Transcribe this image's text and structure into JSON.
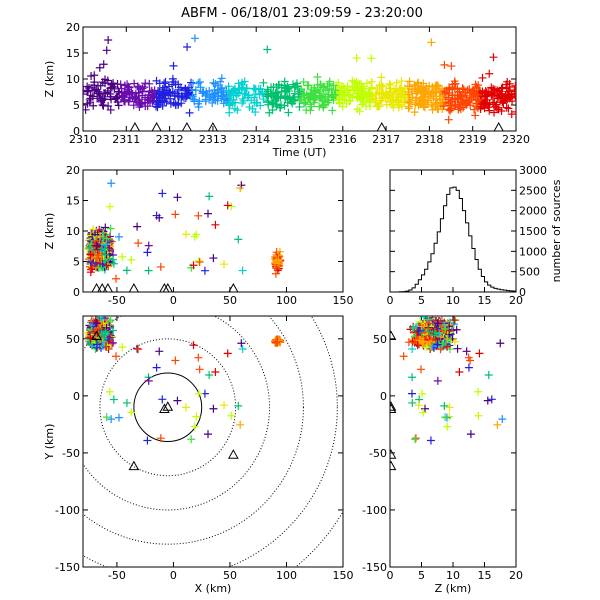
{
  "title": "ABFM - 06/18/01 23:09:59 - 23:20:00",
  "chart_data": [
    {
      "id": "time-height",
      "type": "scatter",
      "xlabel": "Time (UT)",
      "ylabel": "Z (km)",
      "xlim": [
        2310,
        2320
      ],
      "ylim": [
        0,
        20
      ],
      "xticks": [
        "2310",
        "2311",
        "2312",
        "2313",
        "2314",
        "2315",
        "2316",
        "2317",
        "2318",
        "2319",
        "2320"
      ],
      "yticks": [
        "0",
        "5",
        "10",
        "15",
        "20"
      ],
      "stations_x": [
        2311.2,
        2311.7,
        2312.4,
        2313.0,
        2316.9,
        2319.6
      ]
    },
    {
      "id": "x-z",
      "type": "scatter",
      "xlabel": "",
      "ylabel": "Z (km)",
      "xlim": [
        -80,
        150
      ],
      "ylim": [
        0,
        20
      ],
      "xticks": [
        "-50",
        "0",
        "50",
        "100",
        "150"
      ],
      "yticks": [
        "0",
        "5",
        "10",
        "15",
        "20"
      ],
      "stations_x": [
        -68,
        -63,
        -58,
        -35,
        -8,
        -5,
        53
      ]
    },
    {
      "id": "histogram",
      "type": "bar",
      "xlabel": "",
      "ylabel": "number of sources",
      "xlim": [
        0,
        20
      ],
      "ylim": [
        0,
        3000
      ],
      "xticks": [
        "0",
        "5",
        "10",
        "15",
        "20"
      ],
      "yticks": [
        "0",
        "500",
        "1000",
        "1500",
        "2000",
        "2500",
        "3000"
      ],
      "bin_width": 0.5,
      "values": [
        0,
        0,
        0,
        5,
        10,
        20,
        50,
        100,
        190,
        300,
        420,
        560,
        740,
        940,
        1200,
        1480,
        1800,
        2120,
        2400,
        2560,
        2580,
        2500,
        2300,
        2000,
        1700,
        1380,
        1070,
        800,
        560,
        380,
        250,
        170,
        120,
        90,
        70,
        55,
        45,
        35,
        28,
        22
      ]
    },
    {
      "id": "plan-view",
      "type": "scatter",
      "xlabel": "X (km)",
      "ylabel": "Y (km)",
      "xlim": [
        -80,
        150
      ],
      "ylim": [
        -150,
        70
      ],
      "xticks": [
        "-50",
        "0",
        "50",
        "100",
        "150"
      ],
      "yticks": [
        "-150",
        "-100",
        "-50",
        "0",
        "50"
      ],
      "stations": [
        [
          -68,
          52
        ],
        [
          -5,
          -10
        ],
        [
          -8,
          -12
        ],
        [
          -35,
          -62
        ],
        [
          53,
          -52
        ]
      ],
      "range_rings_km": [
        30,
        60,
        90,
        120,
        150,
        180
      ],
      "ring_center": [
        -5,
        -10
      ]
    },
    {
      "id": "z-y",
      "type": "scatter",
      "xlabel": "Z (km)",
      "ylabel": "",
      "xlim": [
        0,
        20
      ],
      "ylim": [
        -150,
        70
      ],
      "xticks": [
        "0",
        "5",
        "10",
        "15",
        "20"
      ],
      "yticks": [
        "-150",
        "-100",
        "-50",
        "0",
        "50"
      ],
      "stations_y": [
        52,
        -10,
        -12,
        -52,
        -62
      ]
    }
  ]
}
